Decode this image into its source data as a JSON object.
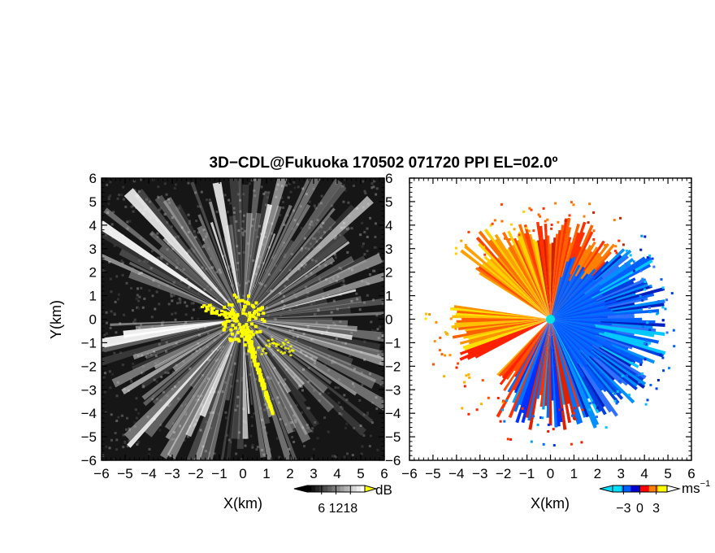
{
  "figure": {
    "title": "3D−CDL@Fukuoka 170502 071720 PPI EL=02.0º"
  },
  "chart_data": [
    {
      "type": "heatmap",
      "name": "reflectivity-ppi",
      "xlabel": "X(km)",
      "ylabel": "Y(km)",
      "xlim": [
        -6,
        6
      ],
      "ylim": [
        -6,
        6
      ],
      "x_ticks": [
        -6,
        -5,
        -4,
        -3,
        -2,
        -1,
        0,
        1,
        2,
        3,
        4,
        5,
        6
      ],
      "y_ticks": [
        -6,
        -5,
        -4,
        -3,
        -2,
        -1,
        0,
        1,
        2,
        3,
        4,
        5,
        6
      ],
      "x_tick_labels": [
        "−6",
        "−5",
        "−4",
        "−3",
        "−2",
        "−1",
        "0",
        "1",
        "2",
        "3",
        "4",
        "5",
        "6"
      ],
      "y_tick_labels": [
        "−6",
        "−5",
        "−4",
        "−3",
        "−2",
        "−1",
        "0",
        "1",
        "2",
        "3",
        "4",
        "5",
        "6"
      ],
      "colorbar": {
        "label": "dB",
        "ticks": [
          6,
          12,
          18
        ],
        "tick_labels": [
          "6",
          "12",
          "18"
        ],
        "range": [
          0,
          24
        ],
        "colors": [
          "#000000",
          "#ffffff"
        ]
      },
      "highlight_color": "#ffff00",
      "radar_site": [
        0,
        0
      ],
      "radar_color": "#555555"
    },
    {
      "type": "heatmap",
      "name": "doppler-velocity-ppi",
      "xlabel": "X(km)",
      "ylabel": "",
      "xlim": [
        -6,
        6
      ],
      "ylim": [
        -6,
        6
      ],
      "x_ticks": [
        -6,
        -5,
        -4,
        -3,
        -2,
        -1,
        0,
        1,
        2,
        3,
        4,
        5,
        6
      ],
      "y_ticks": [
        -6,
        -5,
        -4,
        -3,
        -2,
        -1,
        0,
        1,
        2,
        3,
        4,
        5,
        6
      ],
      "x_tick_labels": [
        "−6",
        "−5",
        "−4",
        "−3",
        "−2",
        "−1",
        "0",
        "1",
        "2",
        "3",
        "4",
        "5",
        "6"
      ],
      "y_tick_labels": [
        "−6",
        "−5",
        "−4",
        "−3",
        "−2",
        "−1",
        "0",
        "1",
        "2",
        "3",
        "4",
        "5",
        "6"
      ],
      "colorbar": {
        "label": "ms",
        "label_superscript": "−1",
        "ticks": [
          -3,
          0,
          3
        ],
        "tick_labels": [
          "−3",
          "0",
          "3"
        ],
        "range": [
          -5,
          5
        ],
        "colors": [
          "#00e0ff",
          "#0060ff",
          "#0000d0",
          "#ff0000",
          "#ff8000",
          "#ffff00"
        ]
      },
      "radar_site": [
        0,
        0
      ],
      "radar_color": "#00e0e0"
    }
  ]
}
